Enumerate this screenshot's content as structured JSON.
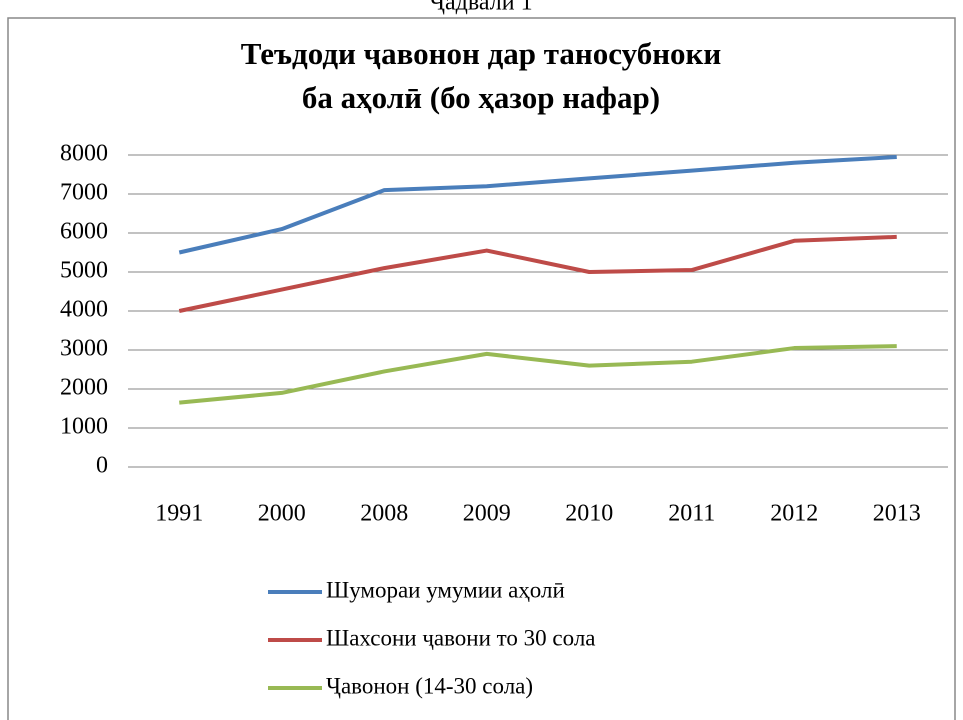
{
  "chart_data": {
    "type": "line",
    "caption": "Ҷадвали 1",
    "title": [
      "Теъдоди ҷавонон дар таносубноки",
      "ба аҳолӣ (бо ҳазор нафар)"
    ],
    "categories": [
      "1991",
      "2000",
      "2008",
      "2009",
      "2010",
      "2011",
      "2012",
      "2013"
    ],
    "series": [
      {
        "name": "Шумораи умумии аҳолӣ",
        "color": "#4a7ebb",
        "values": [
          5500,
          6100,
          7100,
          7200,
          7400,
          7600,
          7800,
          7950
        ]
      },
      {
        "name": "Шахсони ҷавони то 30 сола",
        "color": "#be4b48",
        "values": [
          4000,
          4550,
          5100,
          5550,
          5000,
          5050,
          5800,
          5900
        ]
      },
      {
        "name": "Ҷавонон (14-30 сола)",
        "color": "#98b954",
        "values": [
          1650,
          1900,
          2450,
          2900,
          2600,
          2700,
          3050,
          3100
        ]
      }
    ],
    "ylim": [
      0,
      8000
    ],
    "yticks": [
      0,
      1000,
      2000,
      3000,
      4000,
      5000,
      6000,
      7000,
      8000
    ],
    "grid": true,
    "legend": "bottom"
  }
}
